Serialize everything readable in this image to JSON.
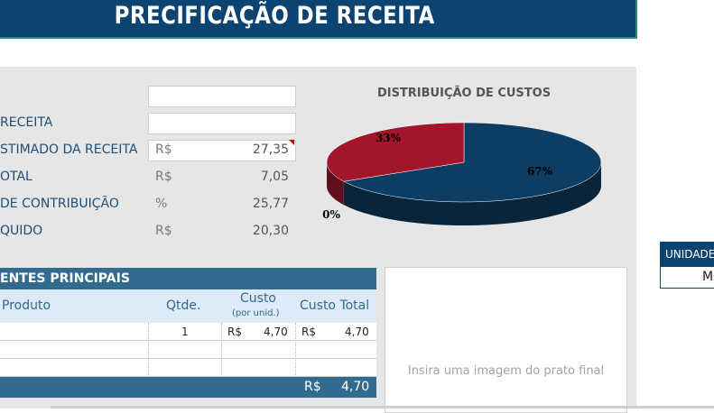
{
  "header": {
    "title": "PRECIFICAÇÃO DE RECEITA"
  },
  "summary": {
    "rows": [
      {
        "label": "RECEITA"
      },
      {
        "label": "STIMADO DA RECEITA",
        "unit": "R$",
        "value": "27,35"
      },
      {
        "label": "OTAL",
        "unit": "R$",
        "value": "7,05"
      },
      {
        "label": "DE CONTRIBUIÇÃO",
        "unit": "%",
        "value": "25,77"
      },
      {
        "label": "QUIDO",
        "unit": "R$",
        "value": "20,30"
      }
    ]
  },
  "chart": {
    "type": "pie",
    "title": "DISTRIBUIÇÃO DE CUSTOS",
    "values": [
      67,
      33,
      0
    ],
    "value_labels": [
      "67%",
      "33%",
      "0%"
    ],
    "colors": [
      "#0e3d63",
      "#a3152b",
      "#7f7f7f"
    ]
  },
  "ingredients": {
    "title": "ENTES PRINCIPAIS",
    "columns": [
      "Produto",
      "Qtde.",
      "Custo",
      "Custo Total"
    ],
    "cost_note": "(por unid.)",
    "rows": [
      [
        "1",
        "R$",
        "4,70",
        "R$",
        "4,70"
      ]
    ],
    "total": {
      "unit": "R$",
      "value": "4,70"
    }
  },
  "image_placeholder": "Insira uma imagem do prato final",
  "unit_table": {
    "header": "UNIDADE",
    "value": "M"
  }
}
